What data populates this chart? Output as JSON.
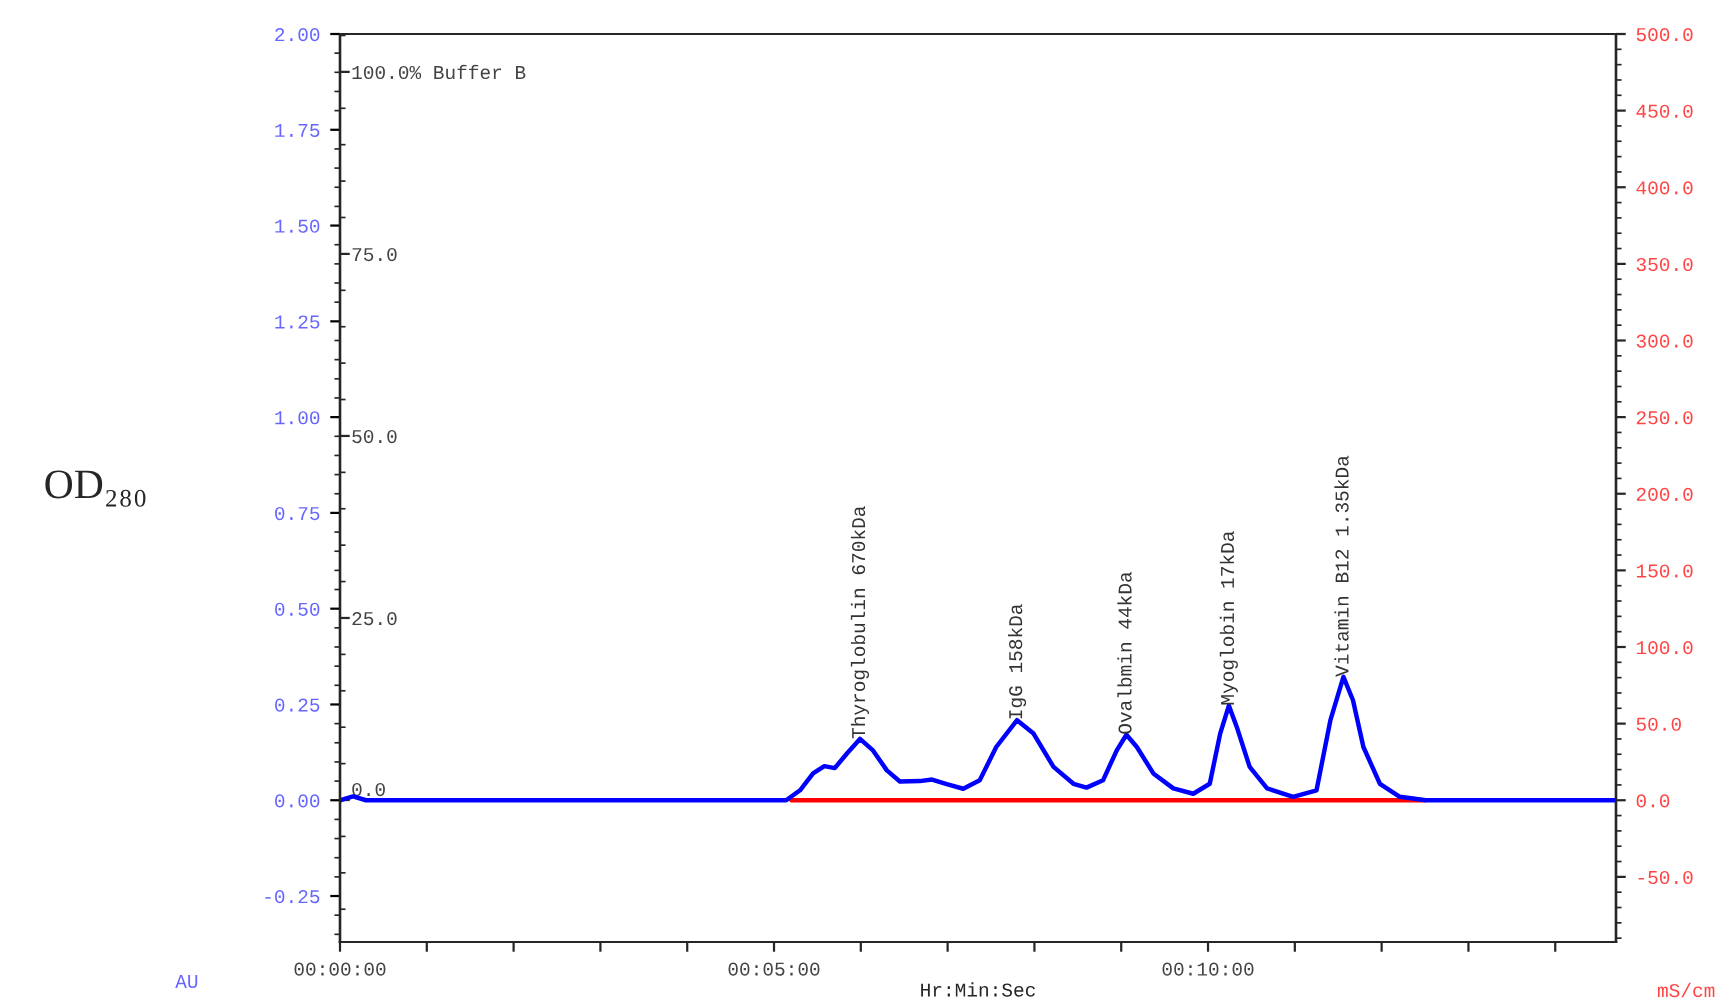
{
  "chart_data": {
    "type": "line",
    "x": [
      0,
      0.15,
      0.3,
      5.14,
      5.3,
      5.45,
      5.58,
      5.7,
      5.84,
      5.99,
      6.14,
      6.3,
      6.45,
      6.68,
      6.82,
      6.99,
      7.18,
      7.37,
      7.56,
      7.8,
      7.99,
      8.22,
      8.45,
      8.6,
      8.79,
      8.95,
      9.06,
      9.18,
      9.37,
      9.6,
      9.83,
      10.02,
      10.14,
      10.24,
      10.33,
      10.48,
      10.68,
      10.98,
      11.25,
      11.41,
      11.56,
      11.67,
      11.79,
      11.98,
      12.21,
      12.51,
      14.7
    ],
    "series": [
      {
        "color": "#ff0000",
        "x": [
          5.2,
          12.5
        ],
        "values": [
          0,
          0
        ]
      },
      {
        "color": "#0000ff",
        "values": [
          0,
          0.01,
          0,
          0,
          0.026,
          0.07,
          0.089,
          0.084,
          0.122,
          0.16,
          0.13,
          0.078,
          0.049,
          0.05,
          0.054,
          0.042,
          0.03,
          0.052,
          0.139,
          0.209,
          0.174,
          0.087,
          0.043,
          0.033,
          0.052,
          0.131,
          0.171,
          0.139,
          0.07,
          0.031,
          0.017,
          0.043,
          0.174,
          0.247,
          0.192,
          0.087,
          0.031,
          0.009,
          0.026,
          0.209,
          0.322,
          0.261,
          0.139,
          0.043,
          0.009,
          0,
          0
        ]
      }
    ],
    "xlabel": "Hr:Min:Sec",
    "ylabel": "OD₂₈₀",
    "y2label": "mS/cm",
    "xlim": [
      0,
      14.7
    ],
    "xticks": [
      {
        "value": 0,
        "label": "00:00:00"
      },
      {
        "value": 1,
        "label": null
      },
      {
        "value": 2,
        "label": null
      },
      {
        "value": 3,
        "label": null
      },
      {
        "value": 4,
        "label": null
      },
      {
        "value": 5,
        "label": "00:05:00"
      },
      {
        "value": 6,
        "label": null
      },
      {
        "value": 7,
        "label": null
      },
      {
        "value": 8,
        "label": null
      },
      {
        "value": 9,
        "label": null
      },
      {
        "value": 10,
        "label": "00:10:00"
      },
      {
        "value": 11,
        "label": null
      },
      {
        "value": 12,
        "label": null
      },
      {
        "value": 13,
        "label": null
      },
      {
        "value": 14,
        "label": null
      }
    ],
    "ylim": [
      -0.37,
      2.0
    ],
    "yticks": [
      {
        "value": -0.25,
        "label": "-0.25"
      },
      {
        "value": 0,
        "label": "0.00"
      },
      {
        "value": 0.25,
        "label": "0.25"
      },
      {
        "value": 0.5,
        "label": "0.50"
      },
      {
        "value": 0.75,
        "label": "0.75"
      },
      {
        "value": 1,
        "label": "1.00"
      },
      {
        "value": 1.25,
        "label": "1.25"
      },
      {
        "value": 1.5,
        "label": "1.50"
      },
      {
        "value": 1.75,
        "label": "1.75"
      },
      {
        "value": 2,
        "label": "2.00"
      }
    ],
    "y2lim": [
      -92.5,
      500
    ],
    "y2ticks": [
      {
        "value": -50,
        "label": "-50.0"
      },
      {
        "value": 0,
        "label": "0.0"
      },
      {
        "value": 50,
        "label": "50.0"
      },
      {
        "value": 100,
        "label": "100.0"
      },
      {
        "value": 150,
        "label": "150.0"
      },
      {
        "value": 200,
        "label": "200.0"
      },
      {
        "value": 250,
        "label": "250.0"
      },
      {
        "value": 300,
        "label": "300.0"
      },
      {
        "value": 350,
        "label": "350.0"
      },
      {
        "value": 400,
        "label": "400.0"
      },
      {
        "value": 450,
        "label": "450.0"
      },
      {
        "value": 500,
        "label": "500.0"
      }
    ],
    "y3lim": [
      -19.5,
      105.2
    ],
    "y3ticks": [
      {
        "value": 0,
        "label": "0.0"
      },
      {
        "value": 25,
        "label": "25.0"
      },
      {
        "value": 50,
        "label": "50.0"
      },
      {
        "value": 75,
        "label": "75.0"
      },
      {
        "value": 100,
        "label": "100.0% Buffer B"
      }
    ],
    "annotations": [
      "AU",
      {
        "text": "Thyroglobulin 670kDa",
        "x": 5.99,
        "y": 0.16
      },
      {
        "text": "IgG 158kDa",
        "x": 7.8,
        "y": 0.209
      },
      {
        "text": "Ovalbmin 44kDa",
        "x": 9.06,
        "y": 0.171
      },
      {
        "text": "Myoglobin 17kDa",
        "x": 10.24,
        "y": 0.247
      },
      {
        "text": "Vitamin B12 1.35kDa",
        "x": 11.56,
        "y": 0.322
      }
    ],
    "grid": false,
    "legend": false,
    "marker": "none",
    "line_style": "solid"
  }
}
